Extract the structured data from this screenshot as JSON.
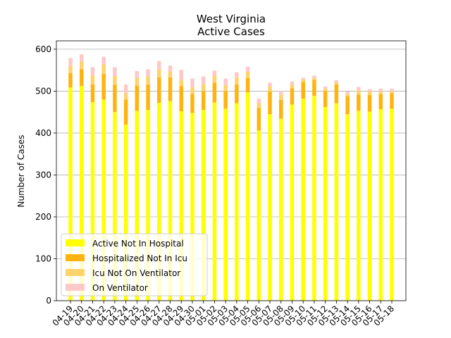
{
  "chart_data": {
    "type": "bar",
    "stacked": true,
    "title": "West Virginia",
    "subtitle": "Active Cases",
    "xlabel": "",
    "ylabel": "Number of Cases",
    "ylim": [
      0,
      620
    ],
    "yticks": [
      0,
      100,
      200,
      300,
      400,
      500,
      600
    ],
    "grid": "horizontal",
    "legend_placement": "lower-left",
    "categories": [
      "04-19",
      "04-20",
      "04-21",
      "04-22",
      "04-23",
      "04-24",
      "04-25",
      "04-26",
      "04-27",
      "04-28",
      "04-29",
      "04-30",
      "05-01",
      "05-02",
      "05-03",
      "05-04",
      "05-05",
      "05-06",
      "05-07",
      "05-08",
      "05-09",
      "05-10",
      "05-11",
      "05-12",
      "05-13",
      "05-14",
      "05-15",
      "05-16",
      "05-17",
      "05-18"
    ],
    "series": [
      {
        "name": "Active Not In Hospital",
        "color": "#ffff00",
        "values": [
          509,
          512,
          474,
          480,
          450,
          420,
          453,
          455,
          472,
          476,
          452,
          448,
          455,
          473,
          458,
          471,
          497,
          406,
          445,
          434,
          468,
          482,
          489,
          462,
          471,
          445,
          453,
          451,
          457,
          458
        ]
      },
      {
        "name": "Hospitalized Not In Icu",
        "color": "#ffb30f",
        "values": [
          34,
          40,
          42,
          61,
          65,
          60,
          60,
          61,
          61,
          57,
          60,
          45,
          45,
          47,
          42,
          45,
          35,
          54,
          54,
          45,
          39,
          40,
          38,
          38,
          45,
          43,
          39,
          40,
          36,
          37
        ]
      },
      {
        "name": "Icu Not On Ventilator",
        "color": "#ffd36b",
        "values": [
          17,
          19,
          22,
          23,
          21,
          15,
          19,
          19,
          19,
          14,
          15,
          16,
          17,
          17,
          14,
          17,
          14,
          12,
          12,
          12,
          8,
          6,
          5,
          7,
          5,
          5,
          10,
          8,
          6,
          5
        ]
      },
      {
        "name": "On Ventilator",
        "color": "#ffc8c8",
        "values": [
          19,
          17,
          19,
          18,
          21,
          21,
          16,
          17,
          20,
          14,
          24,
          21,
          18,
          12,
          16,
          12,
          12,
          10,
          9,
          10,
          8,
          4,
          5,
          4,
          5,
          6,
          8,
          6,
          7,
          6
        ]
      }
    ]
  }
}
